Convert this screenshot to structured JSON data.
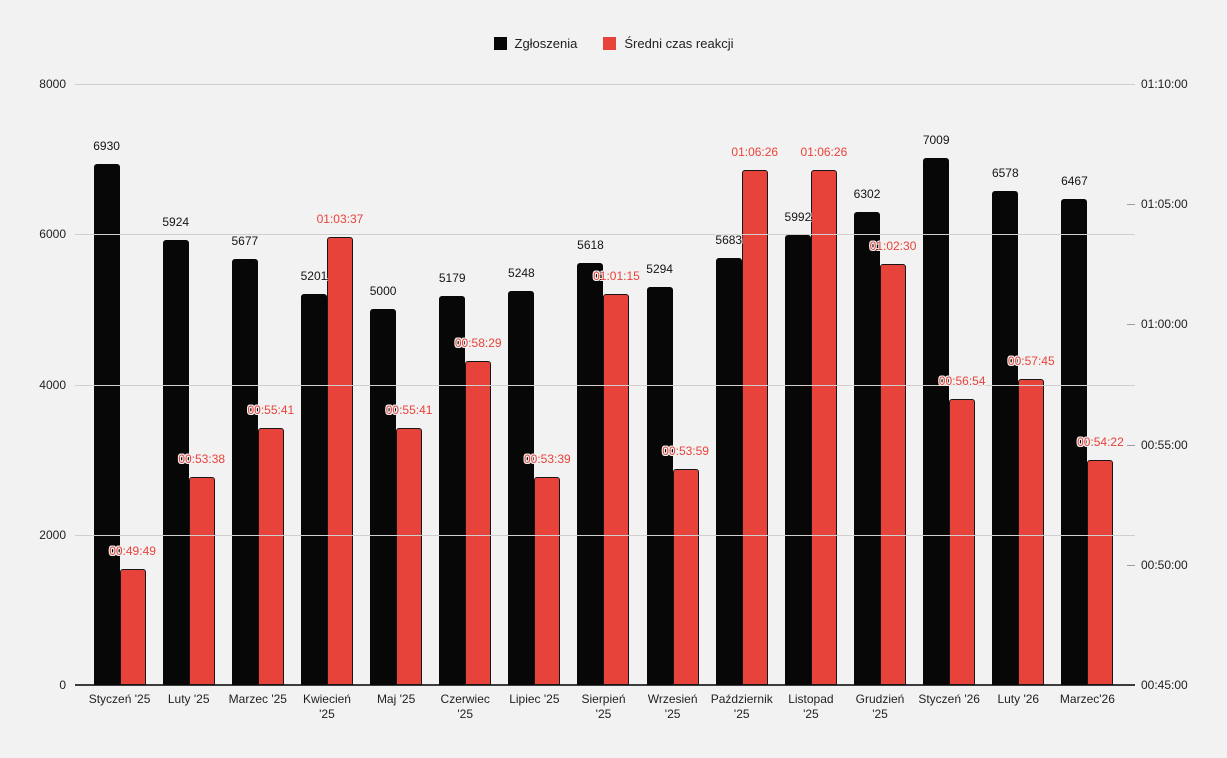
{
  "chart_data": {
    "type": "bar",
    "title": "",
    "legend_position": "top",
    "grid": true,
    "categories": [
      "Styczeń '25",
      "Luty '25",
      "Marzec '25",
      "Kwiecień\n'25",
      "Maj '25",
      "Czerwiec\n'25",
      "Lipiec '25",
      "Sierpień\n'25",
      "Wrzesień\n'25",
      "Październik\n'25",
      "Listopad\n'25",
      "Grudzień\n'25",
      "Styczeń '26",
      "Luty '26",
      "Marzec'26"
    ],
    "series": [
      {
        "name": "Zgłoszenia",
        "color": "#070707",
        "axis": "left",
        "values": [
          6930,
          5924,
          5677,
          5201,
          5000,
          5179,
          5248,
          5618,
          5294,
          5683,
          5992,
          6302,
          7009,
          6578,
          6467
        ]
      },
      {
        "name": "Średni czas reakcji",
        "color": "#e8433a",
        "axis": "right",
        "values": [
          "00:49:49",
          "00:53:38",
          "00:55:41",
          "01:03:37",
          "00:55:41",
          "00:58:29",
          "00:53:39",
          "01:01:15",
          "00:53:59",
          "01:06:26",
          "01:06:26",
          "01:02:30",
          "00:56:54",
          "00:57:45",
          "00:54:22"
        ]
      }
    ],
    "left_axis": {
      "min": 0,
      "max": 8000,
      "ticks": [
        "8000",
        "6000",
        "4000",
        "2000",
        "0"
      ]
    },
    "right_axis": {
      "min": "00:45:00",
      "max": "01:10:00",
      "ticks": [
        "01:10:00",
        "01:05:00",
        "01:00:00",
        "00:55:00",
        "00:50:00",
        "00:45:00"
      ]
    }
  },
  "colors": {
    "background": "#f2f2f2",
    "gridline": "#cfcfcf",
    "baseline": "#3c3c3c",
    "bar_black": "#070707",
    "bar_red": "#e8433a",
    "axis_text": "#1f1f1f"
  }
}
